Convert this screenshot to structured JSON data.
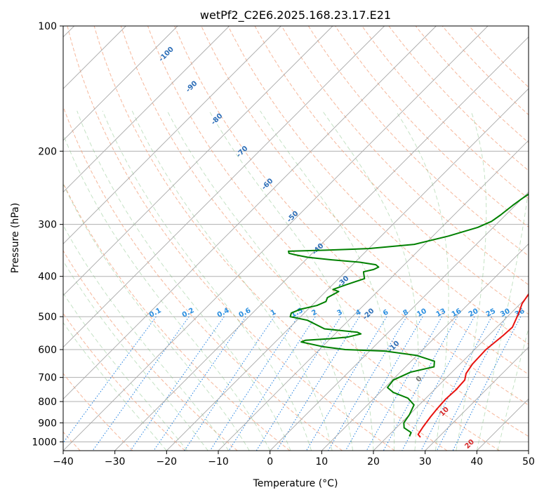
{
  "chart_data": {
    "type": "line",
    "title": "wetPf2_C2E6.2025.168.23.17.E21",
    "xlabel": "Temperature (°C)",
    "ylabel": "Pressure (hPa)",
    "xlim": [
      -40,
      50
    ],
    "ylim": [
      1050,
      100
    ],
    "y_scale": "log",
    "grid": true,
    "x_ticks": [
      -40,
      -30,
      -20,
      -10,
      0,
      10,
      20,
      30,
      40,
      50
    ],
    "y_ticks": [
      100,
      200,
      300,
      400,
      500,
      600,
      700,
      800,
      900,
      1000
    ],
    "series": [
      {
        "role": "temperature",
        "color": "#e8120f",
        "points": [
          [
            26.5,
            975
          ],
          [
            25.5,
            960
          ],
          [
            25.0,
            920
          ],
          [
            24.5,
            870
          ],
          [
            24.2,
            830
          ],
          [
            24.0,
            790
          ],
          [
            24.2,
            750
          ],
          [
            24.0,
            710
          ],
          [
            23.0,
            685
          ],
          [
            22.4,
            650
          ],
          [
            22.2,
            600
          ],
          [
            22.8,
            555
          ],
          [
            23.0,
            530
          ],
          [
            21.5,
            490
          ],
          [
            20.3,
            465
          ],
          [
            19.7,
            440
          ],
          [
            19.4,
            420
          ],
          [
            18.5,
            395
          ],
          [
            17.0,
            370
          ],
          [
            14.3,
            350
          ],
          [
            13.3,
            330
          ],
          [
            12.0,
            310
          ],
          [
            9.5,
            290
          ],
          [
            6.3,
            270
          ],
          [
            3.0,
            243
          ],
          [
            0.5,
            225
          ],
          [
            -3.2,
            201
          ],
          [
            -4.5,
            190
          ],
          [
            -5.3,
            178
          ],
          [
            -6.3,
            162
          ],
          [
            -7.0,
            150
          ],
          [
            -7.3,
            140
          ],
          [
            -7.6,
            130
          ],
          [
            -7.8,
            121
          ],
          [
            -7.7,
            114
          ],
          [
            -6.5,
            108
          ],
          [
            -3.5,
            104
          ],
          [
            -1.0,
            100
          ]
        ]
      },
      {
        "role": "dewpoint",
        "color": "#008000",
        "points": [
          [
            24.2,
            970
          ],
          [
            23.8,
            950
          ],
          [
            21.5,
            925
          ],
          [
            20.5,
            900
          ],
          [
            20.0,
            860
          ],
          [
            19.0,
            815
          ],
          [
            16.5,
            785
          ],
          [
            12.5,
            760
          ],
          [
            10.5,
            740
          ],
          [
            10.2,
            710
          ],
          [
            12.0,
            680
          ],
          [
            15.5,
            660
          ],
          [
            14.5,
            640
          ],
          [
            10.0,
            620
          ],
          [
            3.0,
            605
          ],
          [
            -5.0,
            600
          ],
          [
            -10.0,
            590
          ],
          [
            -15.0,
            575
          ],
          [
            -14.5,
            570
          ],
          [
            -10.0,
            565
          ],
          [
            -7.0,
            560
          ],
          [
            -5.0,
            550
          ],
          [
            -6.0,
            545
          ],
          [
            -13.0,
            535
          ],
          [
            -18.0,
            510
          ],
          [
            -22.0,
            500
          ],
          [
            -22.5,
            490
          ],
          [
            -21.5,
            480
          ],
          [
            -19.0,
            470
          ],
          [
            -18.0,
            460
          ],
          [
            -18.5,
            450
          ],
          [
            -17.5,
            435
          ],
          [
            -19.0,
            430
          ],
          [
            -17.5,
            420
          ],
          [
            -15.0,
            405
          ],
          [
            -16.0,
            395
          ],
          [
            -16.5,
            390
          ],
          [
            -15.0,
            385
          ],
          [
            -14.5,
            380
          ],
          [
            -15.5,
            375
          ],
          [
            -19.0,
            370
          ],
          [
            -25.0,
            365
          ],
          [
            -30.0,
            360
          ],
          [
            -33.0,
            355
          ],
          [
            -34.5,
            352
          ],
          [
            -35.0,
            348
          ],
          [
            -28.0,
            346
          ],
          [
            -20.0,
            343
          ],
          [
            -12.0,
            335
          ],
          [
            -7.0,
            320
          ],
          [
            -3.0,
            305
          ],
          [
            -1.5,
            295
          ],
          [
            -1.0,
            285
          ],
          [
            -0.5,
            270
          ],
          [
            0.0,
            260
          ],
          [
            1.0,
            245
          ],
          [
            1.5,
            240
          ],
          [
            1.0,
            235
          ],
          [
            0.0,
            228
          ],
          [
            0.8,
            222
          ],
          [
            1.5,
            215
          ],
          [
            2.0,
            205
          ],
          [
            0.5,
            195
          ],
          [
            -1.0,
            185
          ],
          [
            -3.0,
            175
          ],
          [
            -4.5,
            170
          ],
          [
            -5.5,
            165
          ],
          [
            -6.5,
            155
          ],
          [
            -6.8,
            145
          ],
          [
            -7.0,
            135
          ],
          [
            -7.3,
            125
          ],
          [
            -7.5,
            118
          ],
          [
            -7.2,
            113
          ],
          [
            -6.5,
            108
          ],
          [
            -7.5,
            104
          ],
          [
            -7.0,
            100
          ]
        ]
      }
    ],
    "dry_adiabat_labels": [
      "-100",
      "-90",
      "-80",
      "-70",
      "-60",
      "-50",
      "-40",
      "-30",
      "-20",
      "-10",
      "0",
      "10",
      "20",
      "30",
      "40"
    ],
    "mixing_ratio_labels": [
      "0.1",
      "0.2",
      "0.4",
      "0.6",
      "1",
      "1.5",
      "2",
      "3",
      "4",
      "6",
      "8",
      "10",
      "13",
      "16",
      "20",
      "25",
      "30",
      "36"
    ]
  }
}
